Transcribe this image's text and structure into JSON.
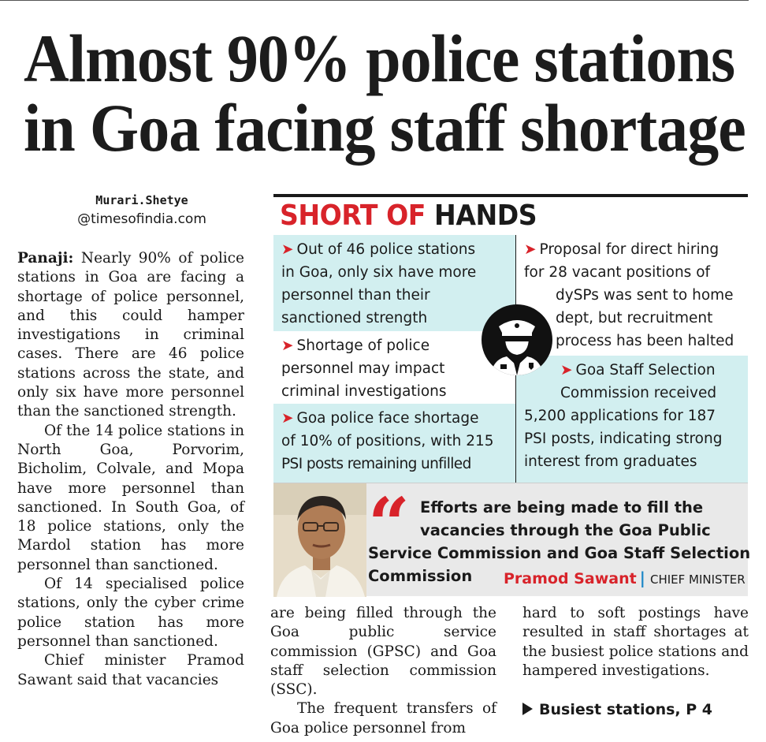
{
  "headline": {
    "line1": "Almost 90% police stations",
    "line2": "in Goa facing staff shortage"
  },
  "byline": {
    "name": "Murari.Shetye",
    "email": "@timesofindia.com"
  },
  "infobox": {
    "title_red": "SHORT OF",
    "title_dark": "HANDS",
    "accent_color": "#d8232a",
    "cell_bg_color": "#d2eff0",
    "icon": "police-officer-icon",
    "items": [
      {
        "lines": [
          "Out of 46 police stations",
          "in Goa, only six have more",
          "personnel than their",
          "sanctioned strength"
        ]
      },
      {
        "lines": [
          "Shortage of police",
          "personnel may impact",
          "criminal investigations"
        ]
      },
      {
        "lines": [
          "Goa police face shortage",
          "of 10% of positions, with 215",
          "PSI posts remaining unfilled"
        ]
      },
      {
        "lines": [
          "Proposal for direct hiring",
          "for 28 vacant positions of",
          "dySPs was sent to home",
          "dept, but recruitment",
          "process has been halted"
        ]
      },
      {
        "lines": [
          "Goa Staff Selection",
          "Commission received",
          "5,200 applications for 187",
          "PSI posts, indicating strong",
          "interest from graduates"
        ]
      }
    ]
  },
  "quote": {
    "lines": [
      "Efforts are being made to fill the",
      "vacancies through the Goa Public",
      "Service Commission and Goa Staff Selection",
      "Commission"
    ],
    "speaker": "Pramod Sawant",
    "role": "CHIEF MINISTER"
  },
  "article": {
    "lead": "Panaji:",
    "p1": "Nearly 90% of police stations in Goa are facing a shortage of police personnel, and this could hamper investigations in criminal cases. There are 46 police stations across the state, and only six have more personnel than the sanctioned strength.",
    "p2": "Of the 14 police stations in North Goa, Porvorim, Bicholim, Colvale, and Mopa have more personnel than sanctioned. In South Goa, of 18 police stations, only the Mardol station has more personnel than sanctioned.",
    "p3": "Of 14 specialised police stations, only the cyber crime police station has more personnel than sanctioned.",
    "p4": "Chief minister Pramod Sawant said that vacancies",
    "col2_p1": "are being filled through the Goa public service commission (GPSC) and Goa staff selection commission (SSC).",
    "col2_p2": "The frequent transfers of Goa police personnel from",
    "col3_p1": "hard to soft postings have resulted in staff shortages at the busiest police stations and hampered investigations.",
    "crossref": "Busiest stations, P 4"
  }
}
